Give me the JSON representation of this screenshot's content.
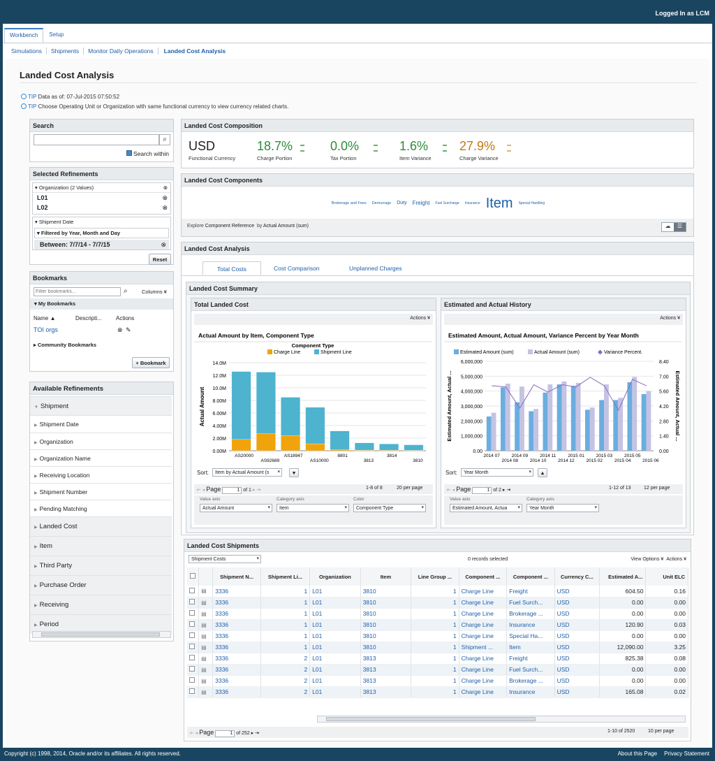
{
  "header": {
    "login": "Logged In as LCM"
  },
  "tabs": [
    "Workbench",
    "Setup"
  ],
  "subnav": [
    "Simulations",
    "Shipments",
    "Monitor Daily Operations",
    "Landed Cost Analysis"
  ],
  "page": {
    "title": "Landed Cost Analysis",
    "tip_label": "TIP",
    "tip1": "Data as of: 07-Jul-2015 07:50:52",
    "tip2": "Choose Operating Unit or Organization with same functional currency to view currency related charts."
  },
  "search": {
    "title": "Search",
    "within": "Search within"
  },
  "selected": {
    "title": "Selected Refinements",
    "org_header": "Organization (2 Values)",
    "orgs": [
      "L01",
      "L02"
    ],
    "date_header": "Shipment Date",
    "filter_header": "Filtered by Year, Month and Day",
    "filter_value": "Between: 7/7/14 - 7/7/15",
    "reset": "Reset"
  },
  "bookmarks": {
    "title": "Bookmarks",
    "placeholder": "Filter bookmarks...",
    "columns": "Columns",
    "my": "My Bookmarks",
    "col_name": "Name",
    "col_desc": "Descripti...",
    "col_actions": "Actions",
    "item": "TOI orgs",
    "community": "Community Bookmarks",
    "add": "Bookmark"
  },
  "refinements": {
    "title": "Available Refinements",
    "items": [
      "Shipment",
      "Shipment Date",
      "Organization",
      "Organization Name",
      "Receiving Location",
      "Shipment Number",
      "Pending Matching",
      "Landed Cost",
      "Item",
      "Third Party",
      "Purchase Order",
      "Receiving",
      "Period"
    ]
  },
  "composition": {
    "title": "Landed Cost Composition",
    "currency": "USD",
    "currency_label": "Functional Currency",
    "kpis": [
      {
        "value": "18.7%",
        "label": "Charge Portion",
        "color": "#2e8b3a"
      },
      {
        "value": "0.0%",
        "label": "Tax Portion",
        "color": "#2e8b3a"
      },
      {
        "value": "1.6%",
        "label": "Item Variance",
        "color": "#2e8b3a"
      },
      {
        "value": "27.9%",
        "label": "Charge Variance",
        "color": "#c07a14"
      }
    ]
  },
  "components": {
    "title": "Landed Cost Components",
    "tags": [
      "Brokerage and Fees",
      "Demurrage",
      "Duty",
      "Freight",
      "Fuel Surcharge",
      "Insurance",
      "Item",
      "Special Handling"
    ],
    "explore": "Explore",
    "explore_value": "Component Reference",
    "by": "by",
    "by_value": "Actual Amount (sum)"
  },
  "analysis": {
    "title": "Landed Cost Analysis",
    "tabs": [
      "Total Costs",
      "Cost Comparison",
      "Unplanned Charges"
    ],
    "summary_title": "Landed Cost Summary"
  },
  "left_chart": {
    "panel_title": "Total Landed Cost",
    "actions": "Actions",
    "sort_label": "Sort:",
    "sort_value": "Item by Actual Amount (s",
    "page_label": "Page",
    "page_value": "1",
    "page_of": "of 1",
    "range": "1-8 of 8",
    "per_page": "20 per page",
    "value_axis_label": "Value axis",
    "value_axis": "Actual Amount",
    "cat_axis_label": "Category axis",
    "cat_axis": "Item",
    "color_label": "Color",
    "color": "Component Type"
  },
  "right_chart": {
    "panel_title": "Estimated and Actual History",
    "actions": "Actions",
    "sort_label": "Sort:",
    "sort_value": "Year Month",
    "page_label": "Page",
    "page_value": "1",
    "page_of": "of 2",
    "range": "1-12 of 13",
    "per_page": "12 per page",
    "value_axis_label": "Value axis",
    "value_axis": "Estimated Amount, Actua",
    "cat_axis_label": "Category axis",
    "cat_axis": "Year Month"
  },
  "chart_data": [
    {
      "type": "bar",
      "stacked": true,
      "title": "Actual Amount by Item, Component Type",
      "legend_title": "Component Type",
      "xlabel": "Item",
      "ylabel": "Actual Amount",
      "categories": [
        "AS20000",
        "AS92689",
        "AS18947",
        "AS10000",
        "8801",
        "3813",
        "3814",
        "3810"
      ],
      "series": [
        {
          "name": "Charge Line",
          "color": "#f0a30a",
          "values": [
            1800000,
            2700000,
            2400000,
            1100000,
            150000,
            100000,
            80000,
            60000
          ]
        },
        {
          "name": "Shipment Line",
          "color": "#4db3cf",
          "values": [
            10800000,
            9800000,
            6100000,
            5800000,
            3000000,
            1150000,
            1000000,
            880000
          ]
        }
      ],
      "yticks": [
        "0.00M",
        "2.00M",
        "4.00M",
        "6.00M",
        "8.00M",
        "10.0M",
        "12.0M",
        "14.0M"
      ],
      "ylim": [
        0,
        14000000
      ]
    },
    {
      "type": "bar",
      "title": "Estimated Amount, Actual Amount, Variance Percent by Year Month",
      "xlabel": "Year Month",
      "ylabel": "Estimated Amount, Actual ...",
      "y2label": "Estimated Amount, Actual ...",
      "categories": [
        "2014 07",
        "2014 08",
        "2014 09",
        "2014 10",
        "2014 11",
        "2014 12",
        "2015 01",
        "2015 02",
        "2015 03",
        "2015 04",
        "2015 05",
        "2015 06"
      ],
      "series": [
        {
          "name": "Estimated Amount (sum)",
          "color": "#6aaee0",
          "values": [
            2300000,
            4250000,
            3250000,
            2650000,
            3900000,
            4450000,
            4350000,
            2750000,
            3400000,
            3400000,
            4600000,
            3800000
          ]
        },
        {
          "name": "Actual Amount (sum)",
          "color": "#c5c3e3",
          "values": [
            2550000,
            4500000,
            4300000,
            2800000,
            4450000,
            4650000,
            4550000,
            2900000,
            4450000,
            3550000,
            4950000,
            4000000
          ]
        },
        {
          "name": "Variance Percent.",
          "color": "#8a6cc0",
          "type": "line",
          "values": [
            6.1,
            6.0,
            4.0,
            6.2,
            5.5,
            6.2,
            6.0,
            6.9,
            6.1,
            3.8,
            6.7,
            6.1
          ]
        }
      ],
      "yticks": [
        "0.00",
        "1,000,000",
        "2,000,000",
        "3,000,000",
        "4,000,000",
        "5,000,000",
        "6,000,000"
      ],
      "y2ticks": [
        "0.00",
        "1.40",
        "2.80",
        "4.20",
        "5.60",
        "7.00",
        "8.40"
      ],
      "ylim": [
        0,
        6000000
      ],
      "y2lim": [
        0,
        8.4
      ]
    }
  ],
  "shipments": {
    "title": "Landed Cost Shipments",
    "view_select": "Shipment Costs",
    "selected": "0 records selected",
    "view_options": "View Options",
    "actions": "Actions",
    "columns": [
      "Shipment N...",
      "Shipment Li...",
      "Organization",
      "Item",
      "Line Group ...",
      "Component ...",
      "Component ...",
      "Currency C...",
      "Estimated A...",
      "Unit ELC"
    ],
    "rows": [
      [
        "3336",
        "1",
        "L01",
        "3810",
        "1",
        "Charge Line",
        "Freight",
        "USD",
        "604.50",
        "0.16"
      ],
      [
        "3336",
        "1",
        "L01",
        "3810",
        "1",
        "Charge Line",
        "Fuel Surch...",
        "USD",
        "0.00",
        "0.00"
      ],
      [
        "3336",
        "1",
        "L01",
        "3810",
        "1",
        "Charge Line",
        "Brokerage ...",
        "USD",
        "0.00",
        "0.00"
      ],
      [
        "3336",
        "1",
        "L01",
        "3810",
        "1",
        "Charge Line",
        "Insurance",
        "USD",
        "120.90",
        "0.03"
      ],
      [
        "3336",
        "1",
        "L01",
        "3810",
        "1",
        "Charge Line",
        "Special Ha...",
        "USD",
        "0.00",
        "0.00"
      ],
      [
        "3336",
        "1",
        "L01",
        "3810",
        "1",
        "Shipment ...",
        "Item",
        "USD",
        "12,090.00",
        "3.25"
      ],
      [
        "3336",
        "2",
        "L01",
        "3813",
        "1",
        "Charge Line",
        "Freight",
        "USD",
        "825.38",
        "0.08"
      ],
      [
        "3336",
        "2",
        "L01",
        "3813",
        "1",
        "Charge Line",
        "Fuel Surch...",
        "USD",
        "0.00",
        "0.00"
      ],
      [
        "3336",
        "2",
        "L01",
        "3813",
        "1",
        "Charge Line",
        "Brokerage ...",
        "USD",
        "0.00",
        "0.00"
      ],
      [
        "3336",
        "2",
        "L01",
        "3813",
        "1",
        "Charge Line",
        "Insurance",
        "USD",
        "165.08",
        "0.02"
      ]
    ],
    "page_label": "Page",
    "page_value": "1",
    "page_of": "of 252",
    "range": "1-10 of 2520",
    "per_page": "10 per page"
  },
  "footer": {
    "copyright": "Copyright (c) 1998, 2014, Oracle and/or its affiliates. All rights reserved.",
    "about": "About this Page",
    "privacy": "Privacy Statement"
  }
}
